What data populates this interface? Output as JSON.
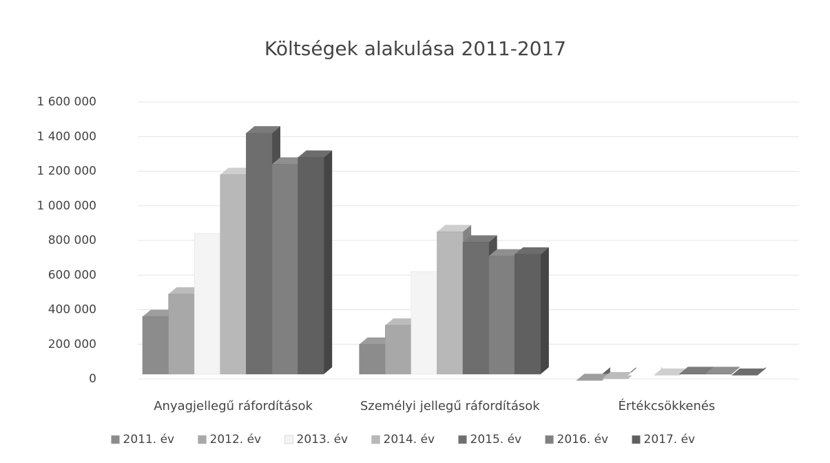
{
  "chart_data": {
    "type": "bar3d",
    "title": "Költségek alakulása 2011-2017",
    "categories": [
      "Anyagjellegű ráfordítások",
      "Személyi jellegű ráfordítások",
      "Értékcsökkenés"
    ],
    "series": [
      {
        "name": "2011. év",
        "color": "#8c8c8c",
        "values": [
          400000,
          240000,
          30000
        ]
      },
      {
        "name": "2012. év",
        "color": "#a8a8a8",
        "values": [
          530000,
          350000,
          40000
        ]
      },
      {
        "name": "2013. év",
        "color": "#f4f4f4",
        "values": [
          880000,
          660000,
          60000
        ]
      },
      {
        "name": "2014. év",
        "color": "#b8b8b8",
        "values": [
          1220000,
          890000,
          60000
        ]
      },
      {
        "name": "2015. év",
        "color": "#6e6e6e",
        "values": [
          1460000,
          830000,
          70000
        ]
      },
      {
        "name": "2016. év",
        "color": "#808080",
        "values": [
          1280000,
          750000,
          70000
        ]
      },
      {
        "name": "2017. év",
        "color": "#606060",
        "values": [
          1320000,
          760000,
          60000
        ]
      }
    ],
    "ylim": [
      0,
      1600000
    ],
    "yticks": [
      0,
      {
        "value": 200000,
        "label": "200 000"
      },
      {
        "value": 400000,
        "label": "400 000"
      },
      {
        "value": 600000,
        "label": "600 000"
      },
      {
        "value": 800000,
        "label": "800 000"
      },
      {
        "value": 1000000,
        "label": "1 000 000"
      },
      {
        "value": 1200000,
        "label": "1 200 000"
      },
      {
        "value": 1400000,
        "label": "1 400 000"
      },
      {
        "value": 1600000,
        "label": "1 600 000"
      }
    ],
    "grid": true,
    "legend": "bottom"
  }
}
